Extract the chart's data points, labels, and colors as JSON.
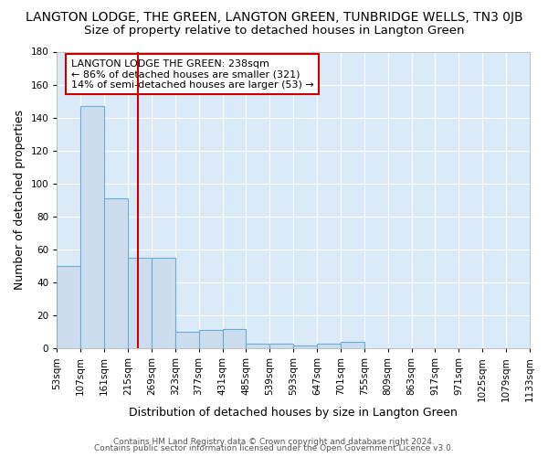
{
  "title": "LANGTON LODGE, THE GREEN, LANGTON GREEN, TUNBRIDGE WELLS, TN3 0JB",
  "subtitle": "Size of property relative to detached houses in Langton Green",
  "xlabel": "Distribution of detached houses by size in Langton Green",
  "ylabel": "Number of detached properties",
  "bar_values": [
    50,
    147,
    91,
    55,
    55,
    10,
    11,
    12,
    3,
    3,
    2,
    3,
    4,
    0,
    0,
    0,
    0,
    0,
    0,
    0
  ],
  "bin_edges": [
    53,
    107,
    161,
    215,
    269,
    323,
    377,
    431,
    485,
    539,
    593,
    647,
    701,
    755,
    809,
    863,
    917,
    971,
    1025,
    1079,
    1133
  ],
  "bin_labels": [
    "53sqm",
    "107sqm",
    "161sqm",
    "215sqm",
    "269sqm",
    "323sqm",
    "377sqm",
    "431sqm",
    "485sqm",
    "539sqm",
    "593sqm",
    "647sqm",
    "701sqm",
    "755sqm",
    "809sqm",
    "863sqm",
    "917sqm",
    "971sqm",
    "1025sqm",
    "1079sqm",
    "1133sqm"
  ],
  "bar_color": "#ccddf0",
  "bar_edge_color": "#6aaed6",
  "vline_x": 238,
  "vline_color": "#cc0000",
  "ylim": [
    0,
    180
  ],
  "yticks": [
    0,
    20,
    40,
    60,
    80,
    100,
    120,
    140,
    160,
    180
  ],
  "background_color": "#daeaf8",
  "grid_color": "#ffffff",
  "legend_text_line1": "LANGTON LODGE THE GREEN: 238sqm",
  "legend_text_line2": "← 86% of detached houses are smaller (321)",
  "legend_text_line3": "14% of semi-detached houses are larger (53) →",
  "footer_line1": "Contains HM Land Registry data © Crown copyright and database right 2024.",
  "footer_line2": "Contains public sector information licensed under the Open Government Licence v3.0.",
  "title_fontsize": 10,
  "subtitle_fontsize": 9.5,
  "tick_fontsize": 7.5,
  "fig_bg": "#ffffff"
}
